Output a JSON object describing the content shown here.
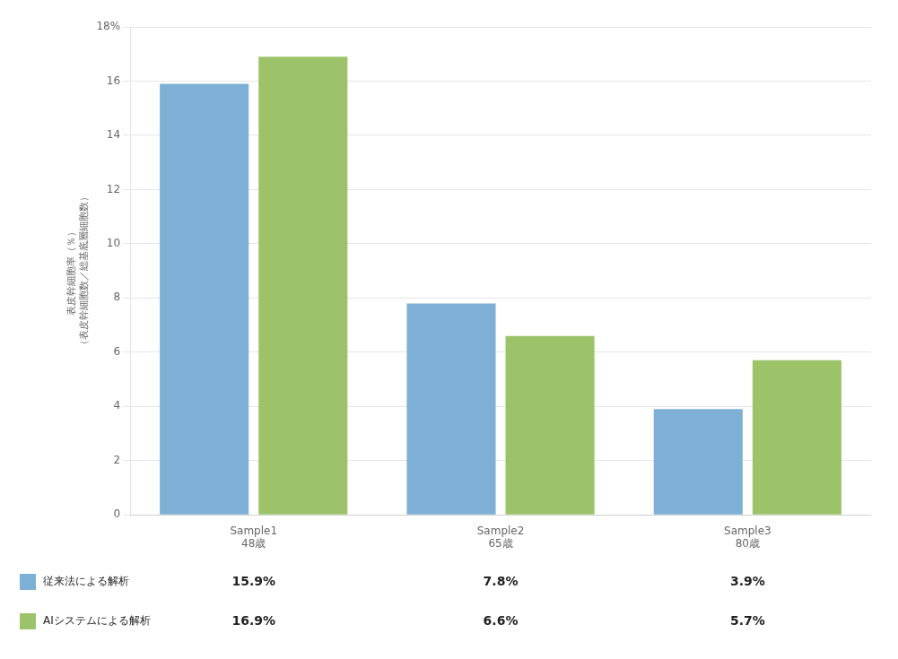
{
  "chart_data": {
    "type": "bar",
    "categories": [
      "Sample1\n48歳",
      "Sample2\n65歳",
      "Sample3\n80歳"
    ],
    "series": [
      {
        "name": "従来法による解析",
        "color": "#7EB0D5",
        "values": [
          15.9,
          7.8,
          3.9
        ],
        "value_labels": [
          "15.9%",
          "7.8%",
          "3.9%"
        ]
      },
      {
        "name": "AIシステムによる解析",
        "color": "#9DC36A",
        "values": [
          16.9,
          6.6,
          5.7
        ],
        "value_labels": [
          "16.9%",
          "6.6%",
          "5.7%"
        ]
      }
    ],
    "ylabel": "表皮幹細胞率（％）\n（表皮幹細胞数／総基底層細胞数）",
    "ylim": [
      0,
      18
    ],
    "yticks": [
      0,
      2,
      4,
      6,
      8,
      10,
      12,
      14,
      16,
      {
        "value": 18,
        "label": "18%"
      }
    ],
    "grid": true,
    "legend": "bottom"
  }
}
